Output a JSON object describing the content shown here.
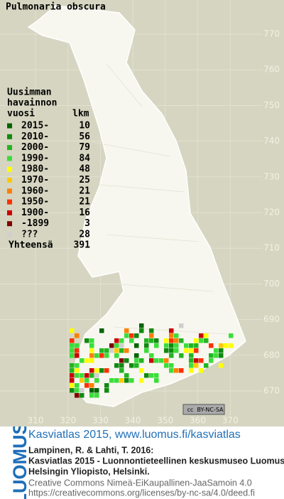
{
  "title": "Pulmonaria obscura",
  "legend": {
    "heading": [
      "Uusimman",
      "havainnon",
      "vuosi"
    ],
    "count_heading": "lkm",
    "rows": [
      {
        "label": "2015-",
        "count": 10,
        "color": "#006400"
      },
      {
        "label": "2010-",
        "count": 56,
        "color": "#108a10"
      },
      {
        "label": "2000-",
        "count": 79,
        "color": "#22b522"
      },
      {
        "label": "1990-",
        "count": 84,
        "color": "#3ade3a"
      },
      {
        "label": "1980-",
        "count": 48,
        "color": "#ffff00"
      },
      {
        "label": "1970-",
        "count": 25,
        "color": "#ffc800"
      },
      {
        "label": "1960-",
        "count": 21,
        "color": "#ff7f00"
      },
      {
        "label": "1950-",
        "count": 21,
        "color": "#ff3000"
      },
      {
        "label": "1900-",
        "count": 16,
        "color": "#cc0000"
      },
      {
        "label": "-1899",
        "count": 3,
        "color": "#800000"
      },
      {
        "label": "???",
        "count": 28,
        "color": "#cfcfcf"
      }
    ],
    "total": {
      "label": "Yhteensä",
      "count": 391
    }
  },
  "grid": {
    "xticks": [
      310,
      320,
      330,
      340,
      350,
      360,
      370
    ],
    "yticks": [
      670,
      680,
      690,
      700,
      710,
      720,
      730,
      740,
      750,
      760,
      770
    ]
  },
  "badge": {
    "icon": "cc",
    "label": "BY-NC-SA"
  },
  "logo": "LUOMUS",
  "footer": {
    "link": "Kasviatlas 2015, www.luomus.fi/kasviatlas",
    "citation": [
      "Lampinen, R. & Lahti, T. 2016:",
      "Kasviatlas 2015 - Luonnontieteellinen keskusmuseo Luomus,",
      "Helsingin Yliopisto, Helsinki."
    ],
    "license": [
      "Creative Commons Nimeä-EiKaupallinen-JaaSamoin 4.0",
      "https://creativecommons.org/licenses/by-nc-sa/4.0/deed.fi"
    ]
  }
}
